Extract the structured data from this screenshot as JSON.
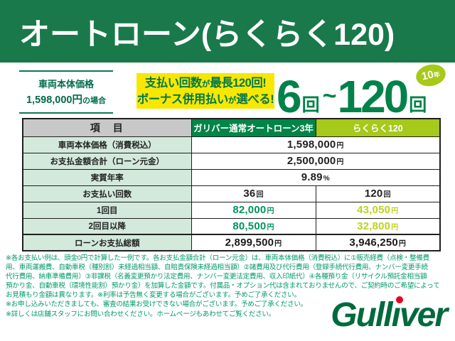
{
  "colors": {
    "banner_green": "#19794a",
    "promo_green_text": "#006b4a",
    "callout_yellow": "#f8e700",
    "callout_green_text": "#00794a",
    "big_range_green": "#00824a",
    "badge_lime": "#a6c91a",
    "table_header_gray": "#c8c8c8",
    "table_header_green": "#008549",
    "table_header_lime": "#a6c91a",
    "label_cell_mint": "#d3e9dc",
    "value_green": "#00945c",
    "value_lime": "#bcd41c",
    "footnote_green": "#009a66",
    "logo_green": "#006a3d",
    "logo_dot_red": "#e8001f"
  },
  "banner": {
    "title": "オートローン(らくらく120)"
  },
  "promo": {
    "price_case": {
      "line1": "車両本体価格",
      "line2_value": "1,598,000円",
      "line2_suffix": "の場合"
    },
    "callout": {
      "line1_a": "支払い回数",
      "line1_b": "が",
      "line1_c": "最長120回!",
      "line2_a": "ボーナス併用払い",
      "line2_b": "が",
      "line2_c": "選べる!"
    },
    "range": {
      "from": "6",
      "from_unit": "回",
      "tilde": "~",
      "to": "120",
      "to_unit": "回"
    },
    "badge": {
      "num": "10",
      "unit": "年"
    }
  },
  "table": {
    "headers": {
      "item": "項　目",
      "plan_a": "ガリバー通常オートローン3年",
      "plan_b": "らくらく120"
    },
    "rows": {
      "price": {
        "label": "車両本体価格（消費税込）",
        "value": "1,598,000",
        "unit": "円"
      },
      "total_loan": {
        "label": "お支払金額合計（ローン元金）",
        "value": "2,500,000",
        "unit": "円"
      },
      "apr": {
        "label": "実質年率",
        "value": "9.89",
        "unit": "%"
      },
      "count": {
        "label": "お支払い回数",
        "a": "36",
        "a_unit": "回",
        "b": "120",
        "b_unit": "回"
      },
      "first": {
        "label": "1回目",
        "a": "82,000",
        "a_unit": "円",
        "b": "43,050",
        "b_unit": "円"
      },
      "second": {
        "label": "2回目以降",
        "a": "80,500",
        "a_unit": "円",
        "b": "32,800",
        "b_unit": "円"
      },
      "total": {
        "label": "ローンお支払総額",
        "a": "2,899,500",
        "a_unit": "円",
        "b": "3,946,250",
        "b_unit": "円"
      }
    }
  },
  "footnotes": [
    "※各お支払い例は、頭金0円で計算した一例です。各お支払金額合計（ローン元金）は、車両本体価格（消費税込）に①販売経費（点検・整備費",
    "用、車両運搬費、自動車税（種別割）未経過相当額、自賠責保険未経過相当額）②諸費用及び代行費用（登録手続代行費用、ナンバー変更手続",
    "代行費用、納車準備費用）③非課税（名義変更預かり法定費用、ナンバー変更法定費用、収入印紙代）④各種預り金（リサイクル預託金相当額",
    "預かり金、自動車税（環境性能割）預かり金）を加算した金額です。付属品・オプション代は含まれておりませんので、ご契約時のご希望によって",
    "お見積もり金額は異なります。※利率は予告無く変更する場合がございます。予めご了承ください。",
    "※お申し込みいただきましても、審査の結果お受けできない場合がございます。予めご了承ください。",
    "※詳しくは店舗スタッフにお問い合わせください。ホームページもあわせてご覧ください。"
  ],
  "logo": {
    "name": "Gulliver",
    "pre": "Gull",
    "dotless_i": "ı",
    "post": "ver"
  }
}
